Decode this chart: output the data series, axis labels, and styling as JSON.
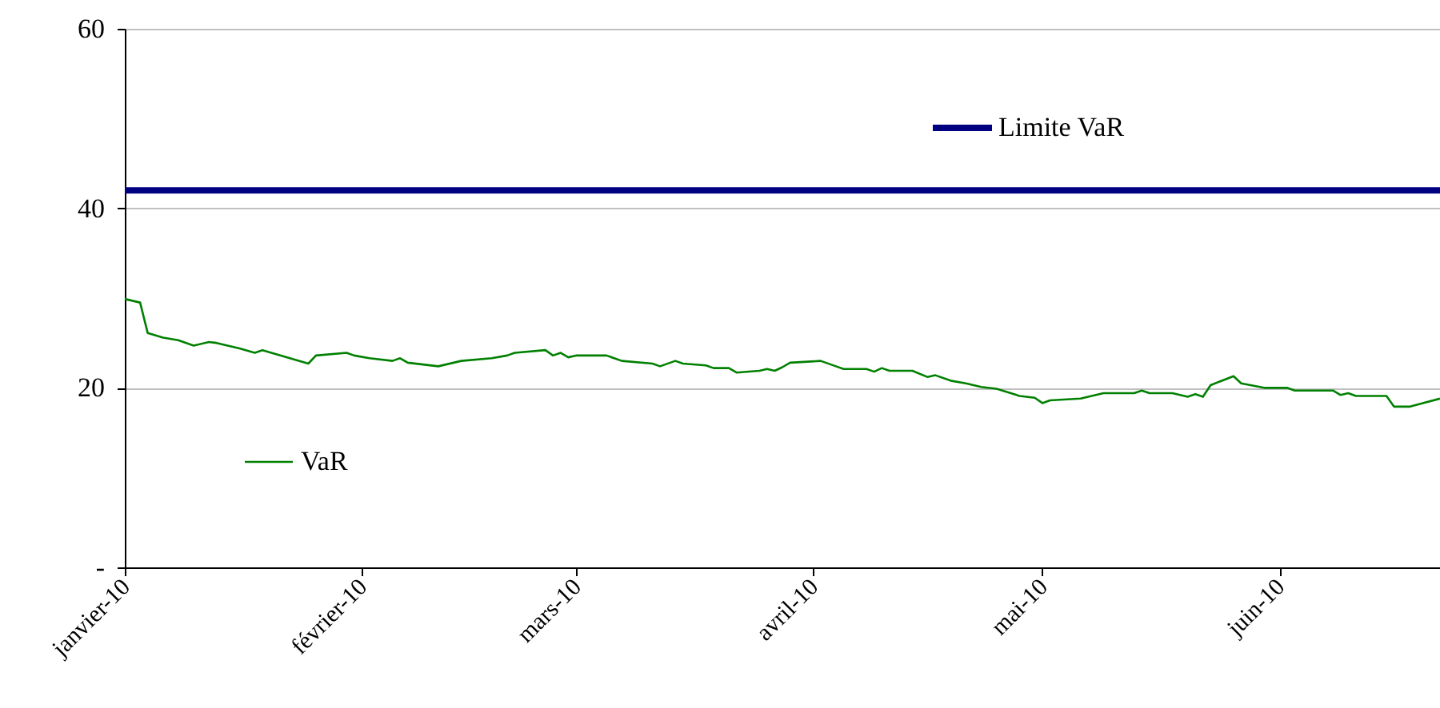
{
  "chart_data": {
    "type": "line",
    "x": [
      "2010-01-01",
      "2010-01-03",
      "2010-01-04",
      "2010-01-06",
      "2010-01-08",
      "2010-01-10",
      "2010-01-12",
      "2010-01-13",
      "2010-01-16",
      "2010-01-18",
      "2010-01-19",
      "2010-01-25",
      "2010-01-26",
      "2010-01-30",
      "2010-01-31",
      "2010-02-02",
      "2010-02-05",
      "2010-02-06",
      "2010-02-07",
      "2010-02-11",
      "2010-02-13",
      "2010-02-14",
      "2010-02-18",
      "2010-02-20",
      "2010-02-21",
      "2010-02-25",
      "2010-02-26",
      "2010-02-27",
      "2010-02-28",
      "2010-03-01",
      "2010-03-05",
      "2010-03-07",
      "2010-03-11",
      "2010-03-12",
      "2010-03-14",
      "2010-03-15",
      "2010-03-18",
      "2010-03-19",
      "2010-03-21",
      "2010-03-22",
      "2010-03-25",
      "2010-03-26",
      "2010-03-27",
      "2010-03-28",
      "2010-03-29",
      "2010-04-02",
      "2010-04-04",
      "2010-04-05",
      "2010-04-08",
      "2010-04-09",
      "2010-04-10",
      "2010-04-11",
      "2010-04-14",
      "2010-04-16",
      "2010-04-17",
      "2010-04-19",
      "2010-04-21",
      "2010-04-23",
      "2010-04-25",
      "2010-04-28",
      "2010-04-30",
      "2010-05-01",
      "2010-05-02",
      "2010-05-06",
      "2010-05-07",
      "2010-05-09",
      "2010-05-13",
      "2010-05-14",
      "2010-05-15",
      "2010-05-18",
      "2010-05-20",
      "2010-05-21",
      "2010-05-22",
      "2010-05-23",
      "2010-05-26",
      "2010-05-27",
      "2010-05-30",
      "2010-06-02",
      "2010-06-03",
      "2010-06-08",
      "2010-06-09",
      "2010-06-10",
      "2010-06-11",
      "2010-06-15",
      "2010-06-16",
      "2010-06-18",
      "2010-06-22"
    ],
    "series": [
      {
        "name": "VaR",
        "color": "#008000",
        "values": [
          29.9,
          29.5,
          26.1,
          25.6,
          25.3,
          24.7,
          25.1,
          25.0,
          24.4,
          23.9,
          24.2,
          22.7,
          23.6,
          23.9,
          23.6,
          23.3,
          23.0,
          23.3,
          22.8,
          22.4,
          22.8,
          23.0,
          23.3,
          23.6,
          23.9,
          24.2,
          23.6,
          23.9,
          23.4,
          23.6,
          23.6,
          23.0,
          22.7,
          22.4,
          23.0,
          22.7,
          22.5,
          22.2,
          22.2,
          21.7,
          21.9,
          22.1,
          21.9,
          22.3,
          22.8,
          23.0,
          22.4,
          22.1,
          22.1,
          21.8,
          22.2,
          21.9,
          21.9,
          21.2,
          21.4,
          20.8,
          20.5,
          20.1,
          19.9,
          19.1,
          18.9,
          18.3,
          18.6,
          18.8,
          19.0,
          19.4,
          19.4,
          19.7,
          19.4,
          19.4,
          19.0,
          19.3,
          19.0,
          20.3,
          21.3,
          20.5,
          20.0,
          20.0,
          19.7,
          19.7,
          19.2,
          19.4,
          19.1,
          19.1,
          17.9,
          17.9,
          18.8
        ]
      }
    ],
    "ref_lines": [
      {
        "axis": "y",
        "value": 42,
        "label": "Limite VaR",
        "color": "#000080"
      }
    ],
    "xlim": [
      "2010-01-01",
      "2010-06-22"
    ],
    "xticks": [
      {
        "value": "2010-01-01",
        "label": "janvier-10"
      },
      {
        "value": "2010-02-01",
        "label": "février-10"
      },
      {
        "value": "2010-03-01",
        "label": "mars-10"
      },
      {
        "value": "2010-04-01",
        "label": "avril-10"
      },
      {
        "value": "2010-05-01",
        "label": "mai-10"
      },
      {
        "value": "2010-06-01",
        "label": "juin-10"
      }
    ],
    "ylim": [
      0,
      60
    ],
    "yticks": [
      {
        "value": 0,
        "label": "-"
      },
      20,
      40,
      60
    ],
    "grid": "y",
    "legend": "left",
    "marker": "none",
    "line_style": "solid"
  }
}
